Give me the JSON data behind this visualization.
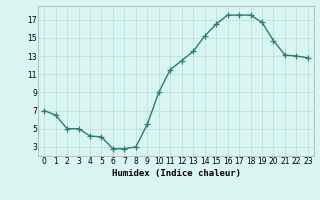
{
  "x": [
    0,
    1,
    2,
    3,
    4,
    5,
    6,
    7,
    8,
    9,
    10,
    11,
    12,
    13,
    14,
    15,
    16,
    17,
    18,
    19,
    20,
    21,
    22,
    23
  ],
  "y": [
    7,
    6.5,
    5,
    5,
    4.2,
    4.1,
    2.8,
    2.8,
    3,
    5.5,
    9,
    11.5,
    12.5,
    13.5,
    15.2,
    16.5,
    17.5,
    17.5,
    17.5,
    16.7,
    14.7,
    13.1,
    13,
    12.8
  ],
  "line_color": "#2e7d6e",
  "marker": "+",
  "markersize": 4,
  "linewidth": 1.0,
  "background_color": "#d8f5ef",
  "grid_color": "#b8ddd8",
  "xlabel": "Humidex (Indice chaleur)",
  "ylabel": "",
  "xlim": [
    -0.5,
    23.5
  ],
  "ylim": [
    2.0,
    18.5
  ],
  "yticks": [
    3,
    5,
    7,
    9,
    11,
    13,
    15,
    17
  ],
  "xticks": [
    0,
    1,
    2,
    3,
    4,
    5,
    6,
    7,
    8,
    9,
    10,
    11,
    12,
    13,
    14,
    15,
    16,
    17,
    18,
    19,
    20,
    21,
    22,
    23
  ],
  "xtick_labels": [
    "0",
    "1",
    "2",
    "3",
    "4",
    "5",
    "6",
    "7",
    "8",
    "9",
    "10",
    "11",
    "12",
    "13",
    "14",
    "15",
    "16",
    "17",
    "18",
    "19",
    "20",
    "21",
    "22",
    "23"
  ],
  "tick_fontsize": 5.5,
  "xlabel_fontsize": 6.5
}
